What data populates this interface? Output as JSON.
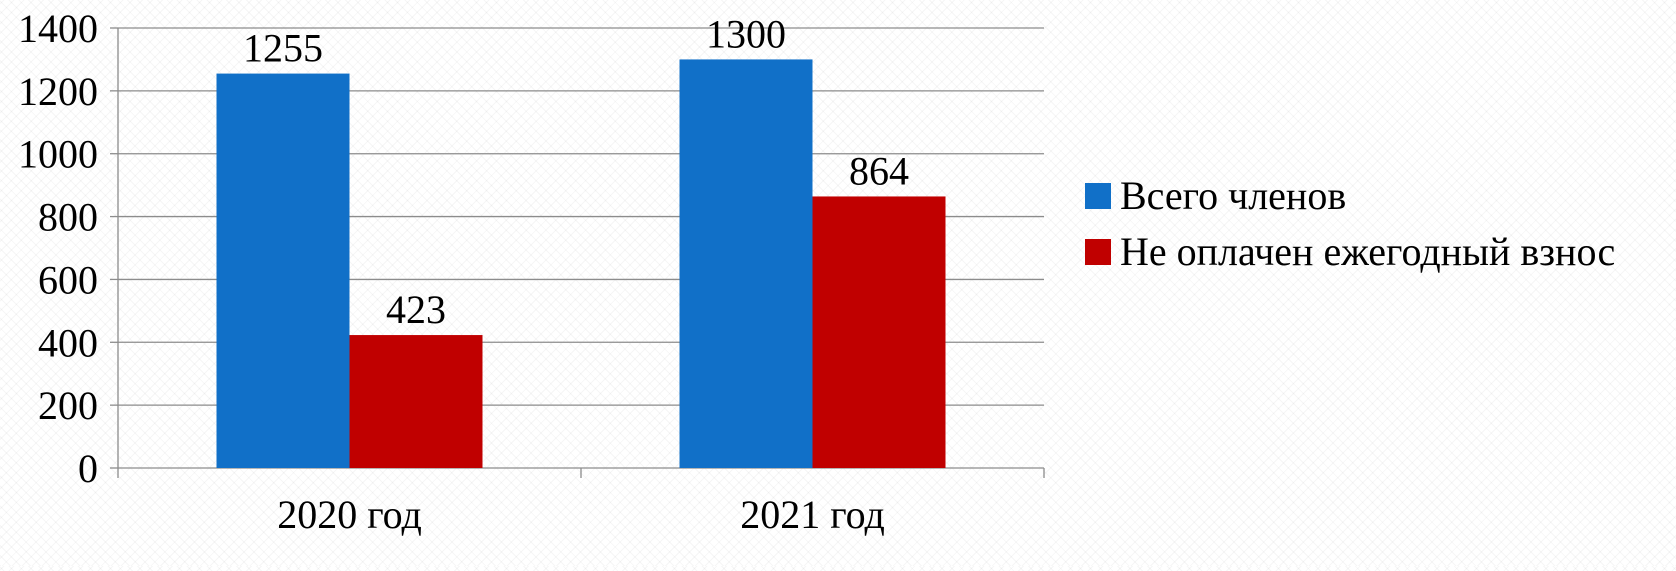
{
  "chart_data": {
    "type": "bar",
    "categories": [
      "2020 год",
      "2021 год"
    ],
    "series": [
      {
        "name": "Всего членов",
        "values": [
          1255,
          1300
        ],
        "color": "#1170c8"
      },
      {
        "name": "Не оплачен ежегодный взнос",
        "values": [
          423,
          864
        ],
        "color": "#c00000"
      }
    ],
    "y_ticks": [
      "0",
      "200",
      "400",
      "600",
      "800",
      "1000",
      "1200",
      "1400"
    ],
    "ylim": [
      0,
      1400
    ],
    "grid": true,
    "legend_position": "right",
    "data_labels": [
      [
        "1255",
        "1300"
      ],
      [
        "423",
        "864"
      ]
    ]
  }
}
